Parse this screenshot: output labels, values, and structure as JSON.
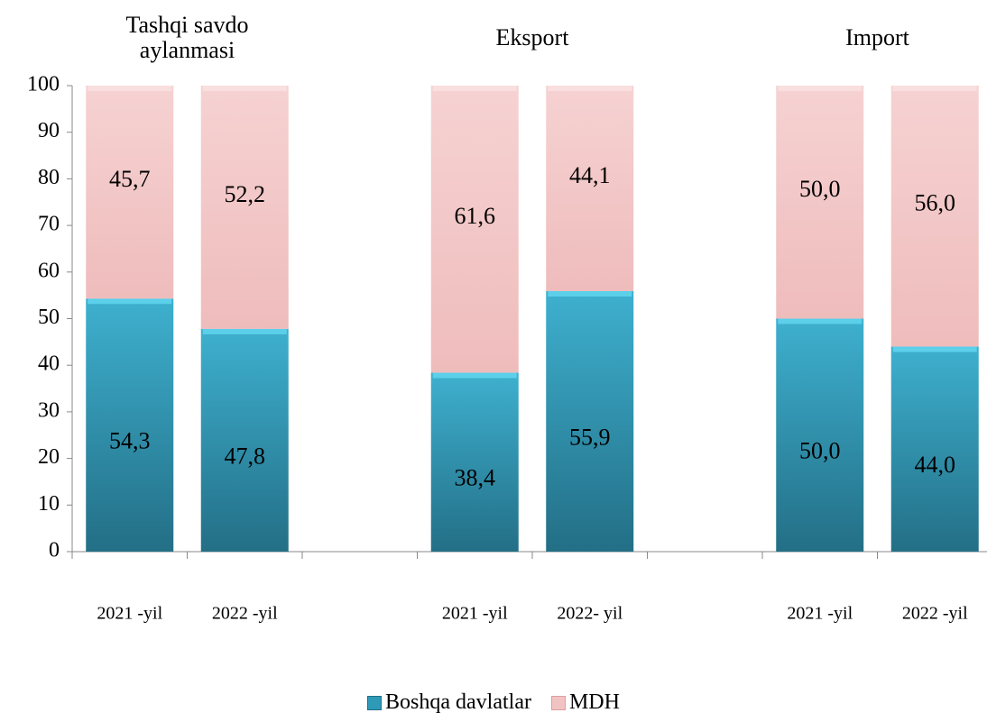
{
  "chart_data": {
    "type": "stacked_bar",
    "group_labels": [
      "Tashqi savdo aylanmasi",
      "Eksport",
      "Import"
    ],
    "categories": [
      "2021 -yil",
      "2022 -yil",
      null,
      "2021 -yil",
      "2022- yil",
      null,
      "2021 -yil",
      "2022 -yil"
    ],
    "series": [
      {
        "name": "Boshqa davlatlar",
        "color": "#2f9ab8",
        "values": [
          54.3,
          47.8,
          null,
          38.4,
          55.9,
          null,
          50.0,
          44.0
        ],
        "value_labels": [
          "54,3",
          "47,8",
          null,
          "38,4",
          "55,9",
          null,
          "50,0",
          "44,0"
        ]
      },
      {
        "name": "MDH",
        "color": "#f2c3c3",
        "values": [
          45.7,
          52.2,
          null,
          61.6,
          44.1,
          null,
          50.0,
          56.0
        ],
        "value_labels": [
          "45,7",
          "52,2",
          null,
          "61,6",
          "44,1",
          null,
          "50,0",
          "56,0"
        ]
      }
    ],
    "ylim": [
      0,
      100
    ],
    "yticks": [
      0,
      10,
      20,
      30,
      40,
      50,
      60,
      70,
      80,
      90,
      100
    ],
    "grid": false
  }
}
